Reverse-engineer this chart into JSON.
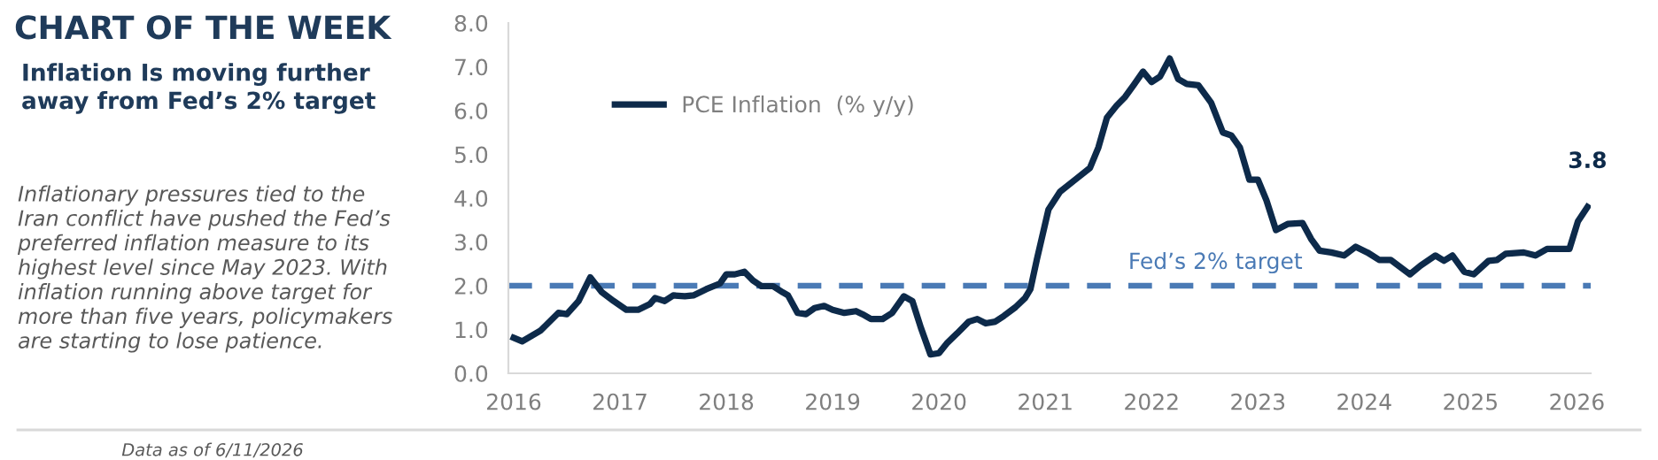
{
  "chart_data": {
    "type": "line",
    "title": "CHART OF THE WEEK",
    "subtitle": "Inflation Is moving further\naway from Fed’s 2% target",
    "annotations": [
      "Inflationary pressures tied to the\nIran conflict have pushed the Fed’s\npreferred inflation measure to its\nhighest level since May 2023. With\ninflation running above target for\nmore than five years, policymakers\nare starting to lose patience.",
      "Data as of 6/11/2026"
    ],
    "x": [
      2016.0,
      2016.08,
      2016.25,
      2016.42,
      2016.5,
      2016.61,
      2016.72,
      2016.83,
      2016.94,
      2017.06,
      2017.17,
      2017.28,
      2017.33,
      2017.42,
      2017.5,
      2017.61,
      2017.69,
      2017.81,
      2017.94,
      2018.0,
      2018.08,
      2018.17,
      2018.25,
      2018.33,
      2018.44,
      2018.53,
      2018.58,
      2018.67,
      2018.75,
      2018.83,
      2018.92,
      2019.0,
      2019.11,
      2019.22,
      2019.28,
      2019.36,
      2019.47,
      2019.56,
      2019.67,
      2019.75,
      2019.83,
      2019.92,
      2020.0,
      2020.08,
      2020.17,
      2020.28,
      2020.36,
      2020.44,
      2020.53,
      2020.61,
      2020.72,
      2020.81,
      2020.86,
      2020.92,
      2021.03,
      2021.14,
      2021.28,
      2021.42,
      2021.5,
      2021.58,
      2021.67,
      2021.75,
      2021.83,
      2021.92,
      2022.0,
      2022.08,
      2022.17,
      2022.25,
      2022.33,
      2022.44,
      2022.56,
      2022.67,
      2022.75,
      2022.83,
      2022.92,
      2023.0,
      2023.08,
      2023.17,
      2023.28,
      2023.42,
      2023.5,
      2023.58,
      2023.69,
      2023.81,
      2023.92,
      2024.03,
      2024.14,
      2024.25,
      2024.43,
      2024.53,
      2024.67,
      2024.75,
      2024.83,
      2024.94,
      2025.03,
      2025.17,
      2025.25,
      2025.33,
      2025.5,
      2025.61,
      2025.72,
      2025.83,
      2025.93,
      2026.01,
      2026.1
    ],
    "series": [
      {
        "name": "PCE Inflation  (% y/y)",
        "color": "#0d2a4a",
        "values": [
          0.81,
          0.73,
          0.97,
          1.38,
          1.35,
          1.65,
          2.19,
          1.85,
          1.65,
          1.45,
          1.45,
          1.58,
          1.72,
          1.65,
          1.78,
          1.76,
          1.78,
          1.92,
          2.05,
          2.26,
          2.26,
          2.32,
          2.12,
          1.99,
          1.99,
          1.85,
          1.78,
          1.38,
          1.35,
          1.49,
          1.54,
          1.45,
          1.38,
          1.42,
          1.35,
          1.24,
          1.24,
          1.38,
          1.76,
          1.65,
          1.04,
          0.43,
          0.46,
          0.7,
          0.91,
          1.18,
          1.24,
          1.14,
          1.18,
          1.31,
          1.51,
          1.72,
          1.92,
          2.59,
          3.74,
          4.15,
          4.42,
          4.69,
          5.16,
          5.84,
          6.11,
          6.31,
          6.58,
          6.89,
          6.65,
          6.78,
          7.19,
          6.72,
          6.61,
          6.58,
          6.18,
          5.5,
          5.43,
          5.16,
          4.42,
          4.42,
          3.95,
          3.27,
          3.41,
          3.43,
          3.07,
          2.8,
          2.76,
          2.69,
          2.89,
          2.76,
          2.59,
          2.59,
          2.26,
          2.46,
          2.69,
          2.57,
          2.69,
          2.32,
          2.26,
          2.57,
          2.59,
          2.73,
          2.76,
          2.69,
          2.84,
          2.84,
          2.84,
          3.47,
          3.8
        ],
        "value_labels": [
          null,
          null,
          null,
          null,
          null,
          null,
          null,
          null,
          null,
          null,
          null,
          null,
          null,
          null,
          null,
          null,
          null,
          null,
          null,
          null,
          null,
          null,
          null,
          null,
          null,
          null,
          null,
          null,
          null,
          null,
          null,
          null,
          null,
          null,
          null,
          null,
          null,
          null,
          null,
          null,
          null,
          null,
          null,
          null,
          null,
          null,
          null,
          null,
          null,
          null,
          null,
          null,
          null,
          null,
          null,
          null,
          null,
          null,
          null,
          null,
          null,
          null,
          null,
          null,
          null,
          null,
          null,
          null,
          null,
          null,
          null,
          null,
          null,
          null,
          null,
          null,
          null,
          null,
          null,
          null,
          null,
          null,
          null,
          null,
          null,
          null,
          null,
          null,
          null,
          null,
          null,
          null,
          null,
          null,
          null,
          null,
          null,
          null,
          null,
          null,
          null,
          null,
          null,
          null,
          "3.8"
        ]
      }
    ],
    "xlim": [
      2015.95,
      2026.13
    ],
    "xticks": [
      2016,
      2017,
      2018,
      2019,
      2020,
      2021,
      2022,
      2023,
      2024,
      2025,
      2026
    ],
    "ylim": [
      0,
      8
    ],
    "yticks": [
      {
        "value": 0,
        "label": "0.0"
      },
      {
        "value": 1,
        "label": "1.0"
      },
      {
        "value": 2,
        "label": "2.0"
      },
      {
        "value": 3,
        "label": "3.0"
      },
      {
        "value": 4,
        "label": "4.0"
      },
      {
        "value": 5,
        "label": "5.0"
      },
      {
        "value": 6,
        "label": "6.0"
      },
      {
        "value": 7,
        "label": "7.0"
      },
      {
        "value": 8,
        "label": "8.0"
      }
    ],
    "ref_lines": [
      {
        "axis": "y",
        "value": 2,
        "label": "Fed’s 2% target",
        "color": "#4a7ab5",
        "line_style": "dashed"
      }
    ],
    "legend": "top left",
    "grid": false,
    "marker": "none",
    "line_style": "solid"
  }
}
